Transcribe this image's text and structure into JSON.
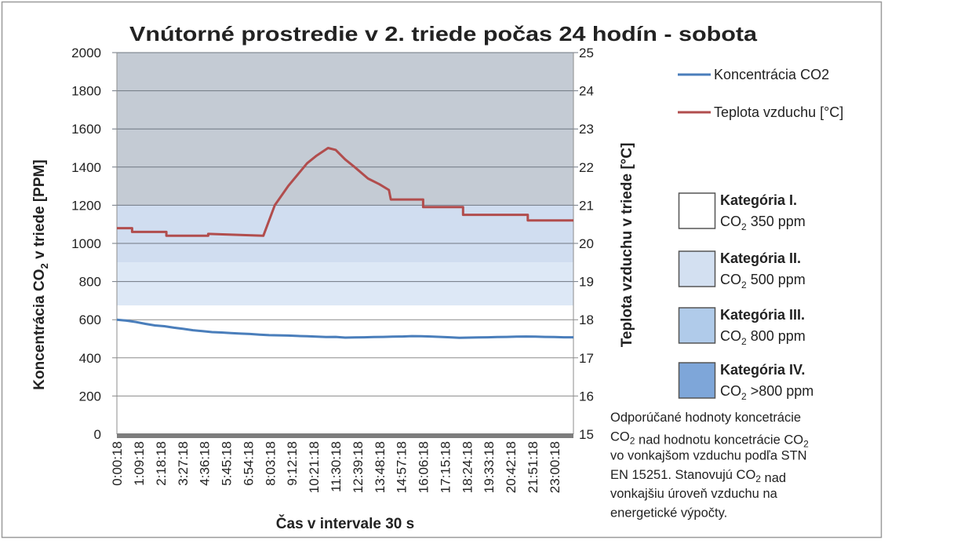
{
  "chart_data": {
    "type": "line",
    "title": "Vnútorné prostredie v 2. triede počas 24 hodín - sobota",
    "xlabel": "Čas v intervale 30 s",
    "ylabel_parts": [
      "Koncentrácia CO",
      "2",
      " v triede [PPM]"
    ],
    "y2label": "Teplota vzduchu v triede [°C]",
    "ylim": [
      0,
      2000
    ],
    "y2lim": [
      15,
      25
    ],
    "yticks": [
      "0",
      "200",
      "400",
      "600",
      "800",
      "1000",
      "1200",
      "1400",
      "1600",
      "1800",
      "2000"
    ],
    "y2ticks": [
      "15",
      "16",
      "17",
      "18",
      "19",
      "20",
      "21",
      "22",
      "23",
      "24",
      "25"
    ],
    "xlim_hours": [
      0,
      24
    ],
    "xticks": [
      "0:00:18",
      "1:09:18",
      "2:18:18",
      "3:27:18",
      "4:36:18",
      "5:45:18",
      "6:54:18",
      "8:03:18",
      "9:12:18",
      "10:21:18",
      "11:30:18",
      "12:39:18",
      "13:48:18",
      "14:57:18",
      "16:06:18",
      "17:15:18",
      "18:24:18",
      "19:33:18",
      "20:42:18",
      "21:51:18",
      "23:00:18"
    ],
    "grid": true,
    "legend_position": "right",
    "bands_ppm": [
      {
        "from": 1200,
        "to": 2000,
        "color": "#c4cbd4"
      },
      {
        "from": 900,
        "to": 1200,
        "color": "#d0ddf0"
      },
      {
        "from": 675,
        "to": 900,
        "color": "#dde8f6"
      }
    ],
    "series": [
      {
        "name": "Koncentrácia CO2",
        "axis": "left",
        "color": "#4a7ebb",
        "x_hours": [
          0,
          0.5,
          1,
          1.5,
          2,
          2.5,
          3,
          3.5,
          4,
          4.5,
          5,
          5.5,
          6,
          6.5,
          7,
          7.5,
          8,
          8.5,
          9,
          9.5,
          10,
          10.5,
          11,
          11.5,
          12,
          12.5,
          13,
          13.5,
          14,
          14.5,
          15,
          15.5,
          16,
          16.5,
          17,
          17.5,
          18,
          18.5,
          19,
          19.5,
          20,
          20.5,
          21,
          21.5,
          22,
          22.5,
          23,
          23.5,
          24
        ],
        "values": [
          600,
          595,
          588,
          578,
          570,
          566,
          558,
          552,
          545,
          540,
          535,
          533,
          530,
          527,
          525,
          522,
          519,
          518,
          517,
          515,
          513,
          511,
          509,
          510,
          506,
          507,
          508,
          509,
          510,
          511,
          512,
          514,
          513,
          512,
          510,
          508,
          505,
          506,
          507,
          508,
          509,
          510,
          511,
          512,
          511,
          510,
          509,
          508,
          508
        ]
      },
      {
        "name": "Teplota vzduchu [°C]",
        "axis": "right",
        "color": "#b14d4d",
        "x_hours": [
          0,
          0.8,
          0.8,
          2.6,
          2.6,
          4.8,
          4.8,
          7.7,
          8.3,
          9.0,
          9.5,
          10.0,
          10.5,
          11.1,
          11.5,
          12.0,
          12.5,
          13.2,
          13.8,
          14.3,
          14.4,
          16.1,
          16.1,
          18.2,
          18.2,
          21.6,
          21.6,
          24
        ],
        "values": [
          20.4,
          20.4,
          20.3,
          20.3,
          20.2,
          20.2,
          20.25,
          20.2,
          21.0,
          21.5,
          21.8,
          22.1,
          22.3,
          22.5,
          22.45,
          22.2,
          22.0,
          21.7,
          21.55,
          21.4,
          21.15,
          21.15,
          20.95,
          20.95,
          20.75,
          20.75,
          20.6,
          20.6
        ]
      }
    ]
  },
  "legend": {
    "series": [
      "Koncentrácia CO2",
      "Teplota vzduchu [°C]"
    ],
    "categories": [
      {
        "label": "Kategória I.",
        "co": "CO",
        "sub": "2",
        "value": " 350 ppm",
        "color": "#ffffff"
      },
      {
        "label": "Kategória II.",
        "co": "CO",
        "sub": "2",
        "value": " 500 ppm",
        "color": "#d3e0f1"
      },
      {
        "label": "Kategória III.",
        "co": "CO",
        "sub": "2",
        "value": " 800 ppm",
        "color": "#b0cbea"
      },
      {
        "label": "Kategória IV.",
        "co": "CO",
        "sub": "2",
        "value": " >800 ppm",
        "color": "#7ea6d9"
      }
    ]
  },
  "note": [
    [
      [
        "Odporúčané hodnoty koncetrácie",
        ""
      ]
    ],
    [
      [
        "CO",
        "2"
      ],
      [
        " nad hodnotu koncetrácie CO",
        "2"
      ]
    ],
    [
      [
        "vo vonkajšom vzduchu podľa STN",
        ""
      ]
    ],
    [
      [
        "EN 15251. Stanovujú CO",
        "2"
      ],
      [
        " nad",
        ""
      ]
    ],
    [
      [
        "vonkajšiu úroveň vzduchu na",
        ""
      ]
    ],
    [
      [
        "energetické výpočty.",
        ""
      ]
    ]
  ]
}
